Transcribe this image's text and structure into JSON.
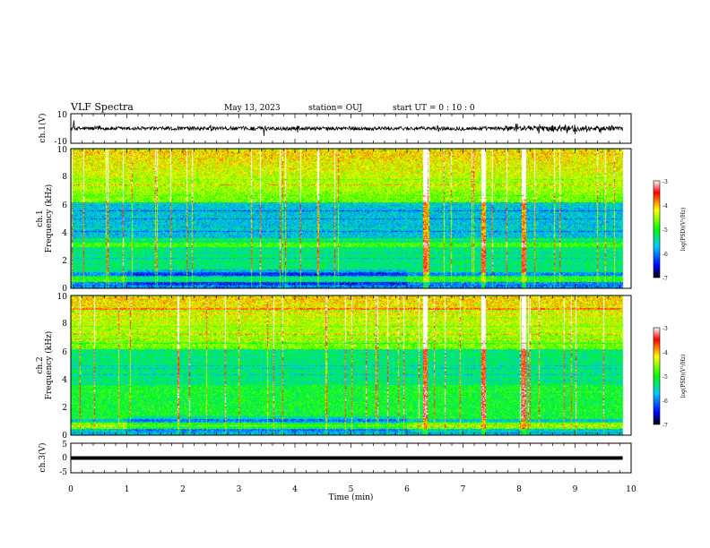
{
  "header": {
    "title": "VLF Spectra",
    "date": "May 13, 2023",
    "station": "station= OUJ",
    "start": "start  UT =   0  : 10 : 0"
  },
  "chart_data": [
    {
      "type": "line",
      "name": "waveform-ch1",
      "ylabel": "ch.1(V)",
      "ylim": [
        -10,
        10
      ],
      "ytick_labels": [
        "10",
        "-10"
      ],
      "xlim": [
        0,
        10
      ]
    },
    {
      "type": "heatmap",
      "name": "spectrogram-ch1",
      "ylabel_line1": "ch.1",
      "ylabel_line2": "Frequency  (kHz)",
      "ylim": [
        0,
        10
      ],
      "yticks": [
        "0",
        "2",
        "4",
        "6",
        "8",
        "10"
      ],
      "xlim": [
        0,
        10
      ],
      "data_end_min": 9.85,
      "colorbar": {
        "label": "log(PSD)(V²/Hz)",
        "range": [
          -7,
          -3
        ],
        "ticks": [
          "-3",
          "-4",
          "-5",
          "-6",
          "-7"
        ]
      }
    },
    {
      "type": "heatmap",
      "name": "spectrogram-ch2",
      "ylabel_line1": "ch.2",
      "ylabel_line2": "Frequency  (kHz)",
      "ylim": [
        0,
        10
      ],
      "yticks": [
        "0",
        "2",
        "4",
        "6",
        "8",
        "10"
      ],
      "xlim": [
        0,
        10
      ],
      "data_end_min": 9.85,
      "colorbar": {
        "label": "log(PSD)(V²/Hz)",
        "range": [
          -7,
          -3
        ],
        "ticks": [
          "-3",
          "-4",
          "-5",
          "-6",
          "-7"
        ]
      }
    },
    {
      "type": "line",
      "name": "waveform-ch3",
      "ylabel": "ch.3(V)",
      "ylim": [
        -5,
        5
      ],
      "ytick_labels": [
        "5",
        "0",
        "-5"
      ],
      "level": 0,
      "xlim": [
        0,
        10
      ],
      "xlabel": "Time  (min)",
      "xticks": [
        "0",
        "1",
        "2",
        "3",
        "4",
        "5",
        "6",
        "7",
        "8",
        "9",
        "10"
      ]
    }
  ]
}
